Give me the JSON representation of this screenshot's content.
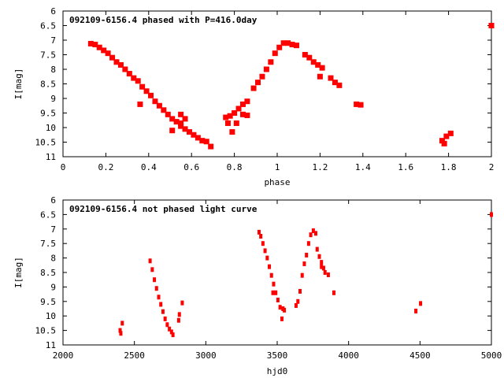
{
  "chart_data": [
    {
      "type": "scatter",
      "title": "092109-6156.4 phased with P=416.0day",
      "xlabel": "phase",
      "ylabel": "I[mag]",
      "xlim": [
        0,
        2
      ],
      "ylim": [
        11,
        6
      ],
      "y_inverted": true,
      "xticks": [
        "0",
        "0.2",
        "0.4",
        "0.6",
        "0.8",
        "1",
        "1.2",
        "1.4",
        "1.6",
        "1.8",
        "2"
      ],
      "yticks": [
        "6",
        "6.5",
        "7",
        "7.5",
        "8",
        "8.5",
        "9",
        "9.5",
        "10",
        "10.5",
        "11"
      ],
      "color": "#ff0000",
      "points": [
        [
          0.13,
          7.12
        ],
        [
          0.15,
          7.15
        ],
        [
          0.17,
          7.25
        ],
        [
          0.19,
          7.35
        ],
        [
          0.21,
          7.45
        ],
        [
          0.23,
          7.6
        ],
        [
          0.25,
          7.75
        ],
        [
          0.27,
          7.85
        ],
        [
          0.29,
          8.0
        ],
        [
          0.31,
          8.15
        ],
        [
          0.33,
          8.3
        ],
        [
          0.35,
          8.4
        ],
        [
          0.37,
          8.6
        ],
        [
          0.39,
          8.75
        ],
        [
          0.41,
          8.9
        ],
        [
          0.43,
          9.1
        ],
        [
          0.45,
          9.25
        ],
        [
          0.47,
          9.4
        ],
        [
          0.49,
          9.55
        ],
        [
          0.51,
          9.7
        ],
        [
          0.53,
          9.8
        ],
        [
          0.55,
          9.95
        ],
        [
          0.57,
          10.05
        ],
        [
          0.59,
          10.15
        ],
        [
          0.61,
          10.25
        ],
        [
          0.63,
          10.35
        ],
        [
          0.65,
          10.45
        ],
        [
          0.67,
          10.48
        ],
        [
          0.69,
          10.65
        ],
        [
          0.36,
          9.2
        ],
        [
          0.51,
          10.1
        ],
        [
          0.55,
          9.55
        ],
        [
          0.57,
          9.7
        ],
        [
          0.55,
          9.85
        ],
        [
          0.76,
          9.65
        ],
        [
          0.78,
          9.6
        ],
        [
          0.8,
          9.5
        ],
        [
          0.82,
          9.35
        ],
        [
          0.84,
          9.2
        ],
        [
          0.86,
          9.1
        ],
        [
          0.77,
          9.85
        ],
        [
          0.79,
          10.15
        ],
        [
          0.81,
          9.85
        ],
        [
          0.84,
          9.55
        ],
        [
          0.86,
          9.58
        ],
        [
          0.89,
          8.65
        ],
        [
          0.91,
          8.45
        ],
        [
          0.93,
          8.25
        ],
        [
          0.95,
          8.0
        ],
        [
          0.97,
          7.75
        ],
        [
          0.99,
          7.45
        ],
        [
          1.01,
          7.25
        ],
        [
          1.03,
          7.1
        ],
        [
          1.05,
          7.1
        ],
        [
          1.07,
          7.15
        ],
        [
          1.09,
          7.18
        ],
        [
          1.13,
          7.5
        ],
        [
          1.15,
          7.6
        ],
        [
          1.17,
          7.75
        ],
        [
          1.19,
          7.85
        ],
        [
          1.21,
          7.95
        ],
        [
          1.2,
          8.25
        ],
        [
          1.25,
          8.3
        ],
        [
          1.27,
          8.45
        ],
        [
          1.29,
          8.55
        ],
        [
          1.37,
          9.2
        ],
        [
          1.39,
          9.22
        ],
        [
          1.77,
          10.45
        ],
        [
          1.78,
          10.55
        ],
        [
          1.79,
          10.3
        ],
        [
          1.81,
          10.2
        ],
        [
          2.0,
          6.5
        ]
      ]
    },
    {
      "type": "scatter",
      "title": "092109-6156.4 not phased light curve",
      "xlabel": "hjd0",
      "ylabel": "I[mag]",
      "xlim": [
        2000,
        5000
      ],
      "ylim": [
        11,
        6
      ],
      "y_inverted": true,
      "xticks": [
        "2000",
        "2500",
        "3000",
        "3500",
        "4000",
        "4500",
        "5000"
      ],
      "yticks": [
        "6",
        "6.5",
        "7",
        "7.5",
        "8",
        "8.5",
        "9",
        "9.5",
        "10",
        "10.5",
        "11"
      ],
      "color": "#ff0000",
      "points": [
        [
          2400,
          10.5
        ],
        [
          2405,
          10.6
        ],
        [
          2415,
          10.25
        ],
        [
          2610,
          8.1
        ],
        [
          2625,
          8.4
        ],
        [
          2640,
          8.75
        ],
        [
          2655,
          9.05
        ],
        [
          2670,
          9.35
        ],
        [
          2685,
          9.6
        ],
        [
          2700,
          9.85
        ],
        [
          2715,
          10.1
        ],
        [
          2730,
          10.3
        ],
        [
          2745,
          10.45
        ],
        [
          2760,
          10.55
        ],
        [
          2770,
          10.65
        ],
        [
          2810,
          10.15
        ],
        [
          2815,
          9.95
        ],
        [
          2835,
          9.55
        ],
        [
          3373,
          7.11
        ],
        [
          3385,
          7.25
        ],
        [
          3400,
          7.5
        ],
        [
          3415,
          7.75
        ],
        [
          3430,
          8.0
        ],
        [
          3445,
          8.3
        ],
        [
          3460,
          8.6
        ],
        [
          3475,
          8.9
        ],
        [
          3490,
          9.2
        ],
        [
          3505,
          9.45
        ],
        [
          3520,
          9.7
        ],
        [
          3470,
          9.2
        ],
        [
          3540,
          9.75
        ],
        [
          3533,
          10.1
        ],
        [
          3550,
          9.8
        ],
        [
          3632,
          9.64
        ],
        [
          3645,
          9.5
        ],
        [
          3660,
          9.15
        ],
        [
          3675,
          8.6
        ],
        [
          3690,
          8.2
        ],
        [
          3705,
          7.9
        ],
        [
          3720,
          7.5
        ],
        [
          3735,
          7.2
        ],
        [
          3753,
          7.06
        ],
        [
          3770,
          7.15
        ],
        [
          3780,
          7.7
        ],
        [
          3795,
          7.95
        ],
        [
          3810,
          8.15
        ],
        [
          3825,
          8.35
        ],
        [
          3835,
          8.5
        ],
        [
          3858,
          8.58
        ],
        [
          3810,
          8.3
        ],
        [
          3897,
          9.2
        ],
        [
          4471,
          9.83
        ],
        [
          4504,
          9.57
        ],
        [
          5000,
          6.5
        ]
      ]
    }
  ]
}
